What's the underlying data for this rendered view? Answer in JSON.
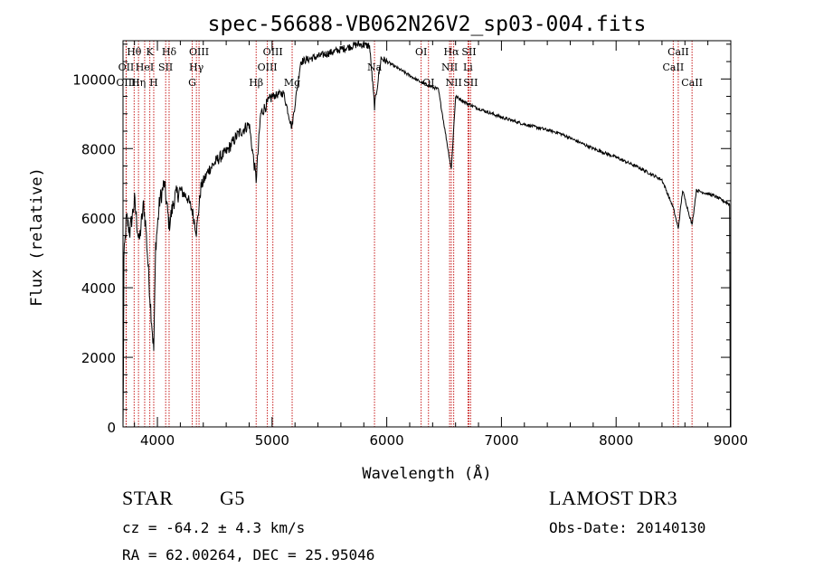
{
  "chart_data": {
    "type": "line",
    "title": "spec-56688-VB062N26V2_sp03-004.fits",
    "xlabel": "Wavelength (Å)",
    "ylabel": "Flux (relative)",
    "xlim": [
      3700,
      9000
    ],
    "ylim": [
      0,
      11100
    ],
    "xticks": [
      4000,
      5000,
      6000,
      7000,
      8000,
      9000
    ],
    "yticks": [
      0,
      2000,
      4000,
      6000,
      8000,
      10000
    ],
    "spectrum_anchors": [
      [
        3700,
        0
      ],
      [
        3703,
        1200
      ],
      [
        3708,
        4800
      ],
      [
        3730,
        6000
      ],
      [
        3760,
        5600
      ],
      [
        3800,
        6500
      ],
      [
        3840,
        5300
      ],
      [
        3880,
        6400
      ],
      [
        3900,
        5700
      ],
      [
        3934,
        3800
      ],
      [
        3968,
        2200
      ],
      [
        3985,
        5200
      ],
      [
        4020,
        6500
      ],
      [
        4060,
        7000
      ],
      [
        4102,
        5800
      ],
      [
        4150,
        6600
      ],
      [
        4200,
        6800
      ],
      [
        4260,
        6600
      ],
      [
        4305,
        6200
      ],
      [
        4340,
        5600
      ],
      [
        4380,
        6900
      ],
      [
        4450,
        7400
      ],
      [
        4530,
        7700
      ],
      [
        4600,
        7900
      ],
      [
        4700,
        8400
      ],
      [
        4800,
        8700
      ],
      [
        4861,
        7100
      ],
      [
        4900,
        9000
      ],
      [
        5000,
        9500
      ],
      [
        5100,
        9600
      ],
      [
        5172,
        8600
      ],
      [
        5250,
        10500
      ],
      [
        5350,
        10600
      ],
      [
        5450,
        10700
      ],
      [
        5550,
        10800
      ],
      [
        5650,
        10900
      ],
      [
        5750,
        11000
      ],
      [
        5850,
        10950
      ],
      [
        5893,
        9200
      ],
      [
        5950,
        10600
      ],
      [
        6100,
        10300
      ],
      [
        6300,
        9900
      ],
      [
        6450,
        9700
      ],
      [
        6563,
        7400
      ],
      [
        6600,
        9500
      ],
      [
        6700,
        9300
      ],
      [
        6800,
        9150
      ],
      [
        7000,
        8900
      ],
      [
        7200,
        8700
      ],
      [
        7500,
        8450
      ],
      [
        7800,
        8000
      ],
      [
        8000,
        7750
      ],
      [
        8200,
        7450
      ],
      [
        8400,
        7100
      ],
      [
        8498,
        6300
      ],
      [
        8542,
        5700
      ],
      [
        8580,
        6800
      ],
      [
        8662,
        5800
      ],
      [
        8700,
        6800
      ],
      [
        8850,
        6650
      ],
      [
        8990,
        6400
      ],
      [
        8996,
        0
      ]
    ],
    "lines": [
      {
        "name": "Hθ",
        "wl": 3797,
        "row": 1
      },
      {
        "name": "OII",
        "wl": 3727,
        "row": 2
      },
      {
        "name": "OIII",
        "wl": 3727,
        "row": 3
      },
      {
        "name": "K",
        "wl": 3934,
        "row": 1
      },
      {
        "name": "HeI",
        "wl": 3889,
        "row": 2
      },
      {
        "name": "Hη",
        "wl": 3835,
        "row": 3
      },
      {
        "name": "Hδ",
        "wl": 4102,
        "row": 1
      },
      {
        "name": "SII",
        "wl": 4072,
        "row": 2
      },
      {
        "name": "H",
        "wl": 3968,
        "row": 3
      },
      {
        "name": "OIII",
        "wl": 4363,
        "row": 1
      },
      {
        "name": "Hγ",
        "wl": 4340,
        "row": 2
      },
      {
        "name": "G",
        "wl": 4304,
        "row": 3
      },
      {
        "name": "OIII",
        "wl": 5007,
        "row": 1
      },
      {
        "name": "OIII",
        "wl": 4959,
        "row": 2
      },
      {
        "name": "Hβ",
        "wl": 4861,
        "row": 3
      },
      {
        "name": "Mg",
        "wl": 5175,
        "row": 3
      },
      {
        "name": "Na",
        "wl": 5893,
        "row": 2
      },
      {
        "name": "OI",
        "wl": 6300,
        "row": 1
      },
      {
        "name": "OI",
        "wl": 6364,
        "row": 3
      },
      {
        "name": "Hα",
        "wl": 6563,
        "row": 1
      },
      {
        "name": "SII",
        "wl": 6717,
        "row": 1
      },
      {
        "name": "NII",
        "wl": 6548,
        "row": 2
      },
      {
        "name": "Li",
        "wl": 6708,
        "row": 2
      },
      {
        "name": "NII",
        "wl": 6584,
        "row": 3
      },
      {
        "name": "SII",
        "wl": 6731,
        "row": 3
      },
      {
        "name": "CaII",
        "wl": 8498,
        "row": 2
      },
      {
        "name": "CaII",
        "wl": 8542,
        "row": 1
      },
      {
        "name": "CaII",
        "wl": 8662,
        "row": 3
      }
    ]
  },
  "info": {
    "object_class": "STAR",
    "subclass": "G5",
    "survey": "LAMOST DR3",
    "redshift": "cz = -64.2 ± 4.3 km/s",
    "obs_date": "Obs-Date: 20140130",
    "coords": "RA =  62.00264, DEC =  25.95046"
  }
}
